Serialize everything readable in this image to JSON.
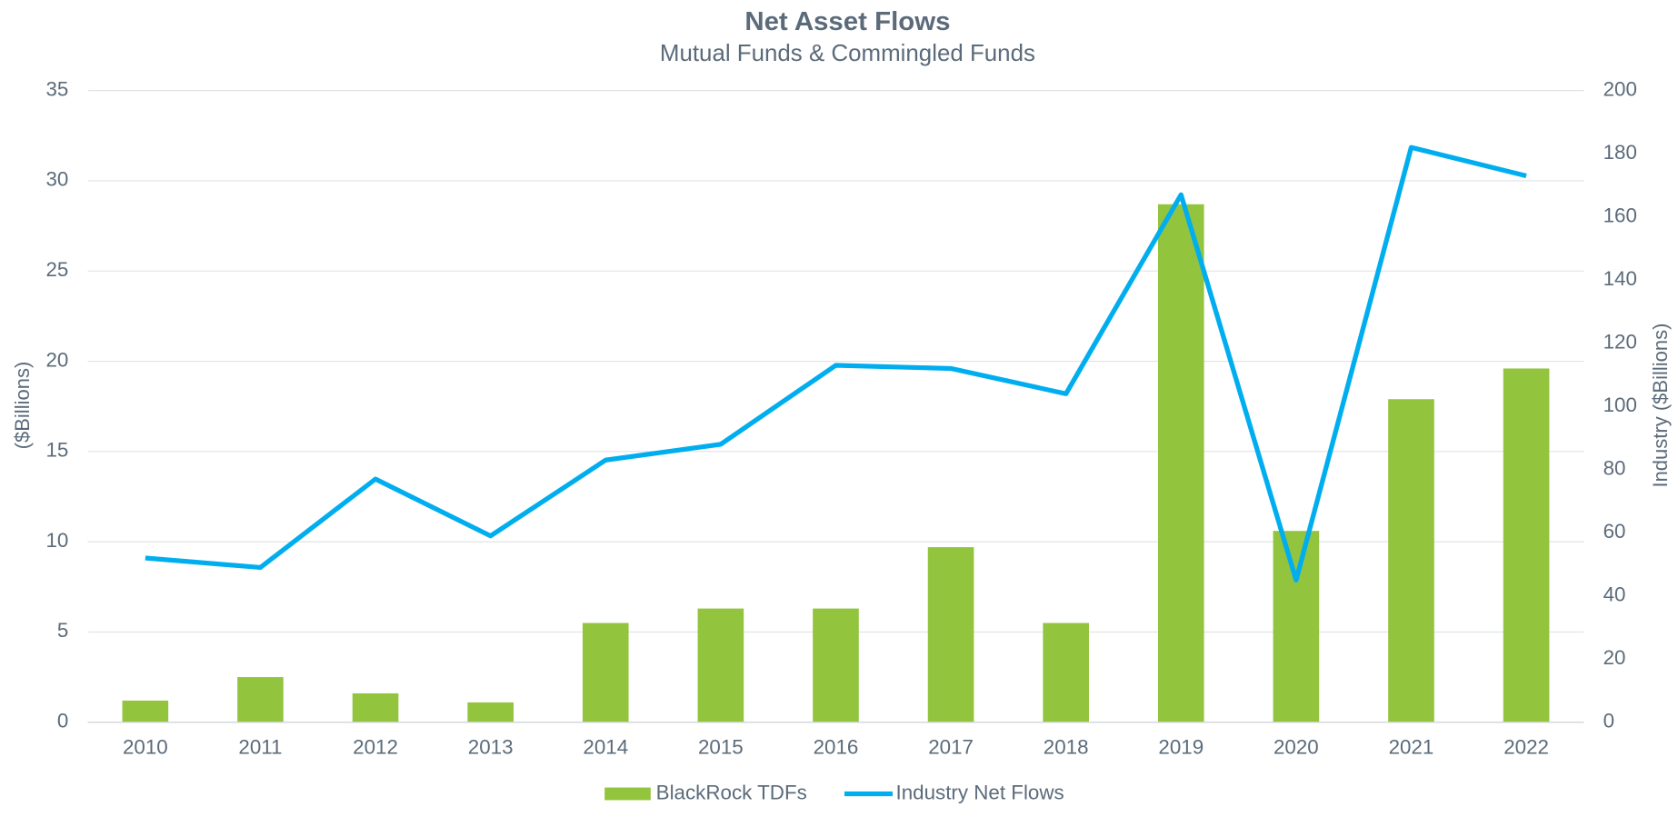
{
  "chart_data": {
    "type": "bar_line",
    "title": "Net Asset Flows",
    "subtitle": "Mutual Funds & Commingled Funds",
    "y_label": "($Billions)",
    "y2_label": "Industry ($Billions)",
    "categories": [
      "2010",
      "2011",
      "2012",
      "2013",
      "2014",
      "2015",
      "2016",
      "2017",
      "2018",
      "2019",
      "2020",
      "2021",
      "2022"
    ],
    "series": [
      {
        "name": "BlackRock TDFs",
        "type": "bar",
        "color": "#93c43e",
        "axis": "y",
        "values": [
          1.2,
          2.5,
          1.6,
          1.1,
          5.5,
          6.3,
          6.3,
          9.7,
          5.5,
          28.7,
          10.6,
          17.9,
          19.6
        ]
      },
      {
        "name": "Industry Net Flows",
        "type": "line",
        "color": "#00aeef",
        "axis": "y2",
        "values": [
          52,
          49,
          77,
          59,
          83,
          88,
          113,
          112,
          104,
          167,
          45,
          182,
          173
        ]
      }
    ],
    "ylim": [
      0,
      35
    ],
    "yticks": [
      0,
      5,
      10,
      15,
      20,
      25,
      30,
      35
    ],
    "y2lim": [
      0,
      200
    ],
    "y2ticks": [
      0,
      20,
      40,
      60,
      80,
      100,
      120,
      140,
      160,
      180,
      200
    ],
    "grid": true,
    "legend": "bottom"
  }
}
